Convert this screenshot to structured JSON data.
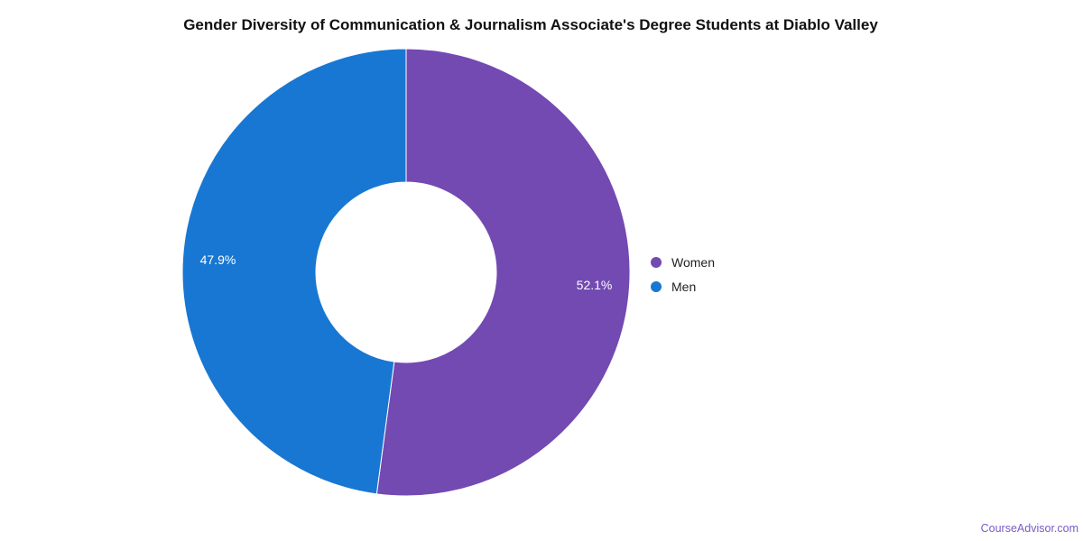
{
  "page": {
    "background": "#ffffff"
  },
  "chart_data": {
    "type": "pie",
    "subtype": "donut",
    "title": "Gender Diversity of Communication & Journalism Associate's Degree Students at Diablo Valley",
    "legend_position": "right",
    "donut_hole_ratio": 0.4,
    "start_angle_deg": 0,
    "direction": "clockwise",
    "slice_border_color": "#ffffff",
    "series": [
      {
        "name": "Women",
        "value": 52.1,
        "label": "52.1%",
        "color": "#7349B2"
      },
      {
        "name": "Men",
        "value": 47.9,
        "label": "47.9%",
        "color": "#1877D2"
      }
    ]
  },
  "footer": {
    "text": "CourseAdvisor.com",
    "color": "#7A5BC5"
  }
}
